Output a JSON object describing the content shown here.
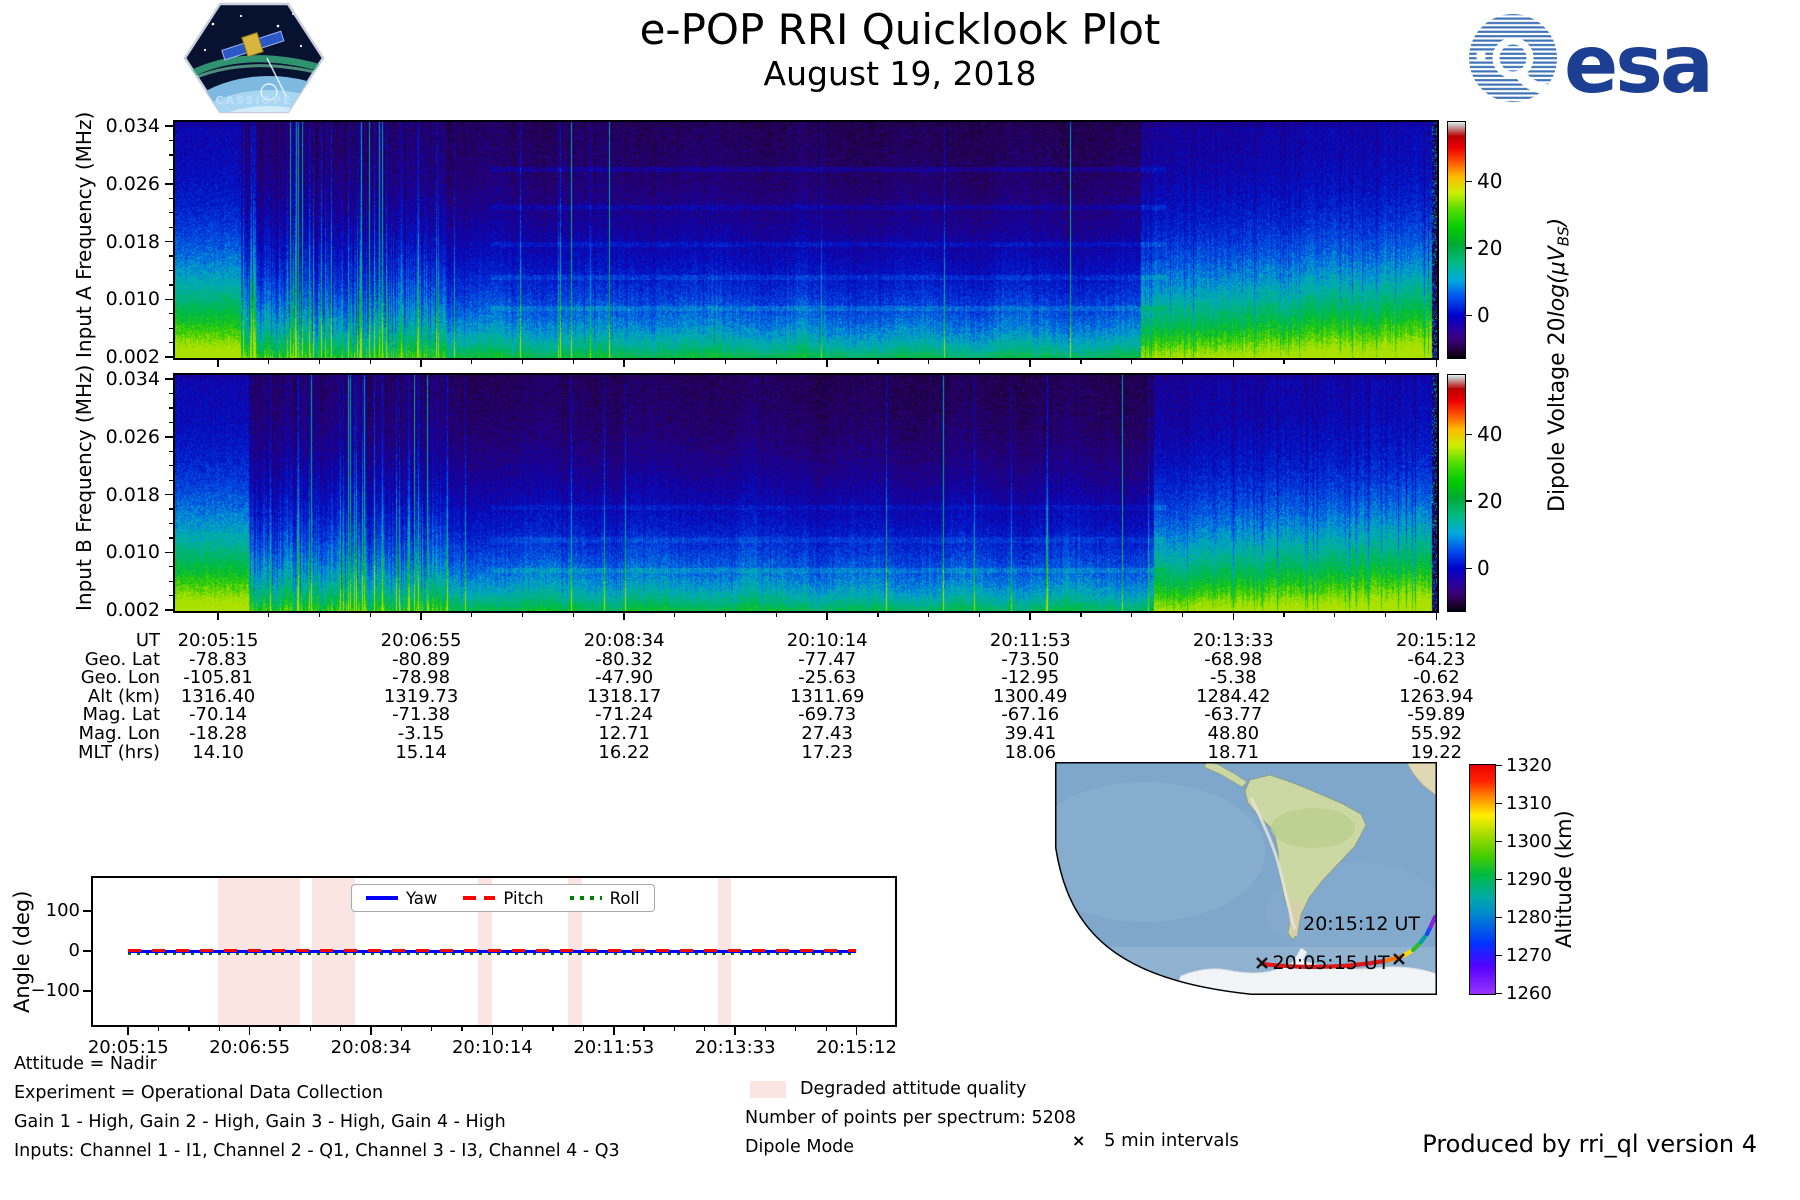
{
  "header": {
    "title": "e-POP RRI Quicklook Plot",
    "date": "August 19, 2018",
    "esa_wordmark": "esa",
    "cassiope_label": "CASSIOPE"
  },
  "palette": {
    "degraded_band": "#fbe5e2",
    "yaw": "#0000ff",
    "pitch": "#ff0000",
    "roll": "#008000",
    "ocean": "#7ea7cb",
    "land": "#ccd8a4",
    "africa_land": "#e0d7b4",
    "ice": "#f2f5f8",
    "esa_blue": "#1c3e93"
  },
  "spectrograms": {
    "panels": [
      {
        "ylabel": "Input A Frequency (MHz)"
      },
      {
        "ylabel": "Input B Frequency (MHz)"
      }
    ],
    "ytick_labels": [
      "0.034",
      "0.026",
      "0.018",
      "0.010",
      "0.002"
    ],
    "colorbar": {
      "ticks": [
        "40",
        "20",
        "0"
      ],
      "label_prefix": "Dipole Voltage 20",
      "label_italic": "log(μV",
      "label_sub": "BS",
      "label_close": ")"
    }
  },
  "ephemeris": {
    "rows": [
      {
        "label": "UT",
        "values": [
          "20:05:15",
          "20:06:55",
          "20:08:34",
          "20:10:14",
          "20:11:53",
          "20:13:33",
          "20:15:12"
        ]
      },
      {
        "label": "Geo. Lat",
        "values": [
          "-78.83",
          "-80.89",
          "-80.32",
          "-77.47",
          "-73.50",
          "-68.98",
          "-64.23"
        ]
      },
      {
        "label": "Geo. Lon",
        "values": [
          "-105.81",
          "-78.98",
          "-47.90",
          "-25.63",
          "-12.95",
          "-5.38",
          "-0.62"
        ]
      },
      {
        "label": "Alt (km)",
        "values": [
          "1316.40",
          "1319.73",
          "1318.17",
          "1311.69",
          "1300.49",
          "1284.42",
          "1263.94"
        ]
      },
      {
        "label": "Mag. Lat",
        "values": [
          "-70.14",
          "-71.38",
          "-71.24",
          "-69.73",
          "-67.16",
          "-63.77",
          "-59.89"
        ]
      },
      {
        "label": "Mag. Lon",
        "values": [
          "-18.28",
          "-3.15",
          "12.71",
          "27.43",
          "39.41",
          "48.80",
          "55.92"
        ]
      },
      {
        "label": "MLT (hrs)",
        "values": [
          "14.10",
          "15.14",
          "16.22",
          "17.23",
          "18.06",
          "18.71",
          "19.22"
        ]
      }
    ]
  },
  "attitude": {
    "ylabel": "Angle (deg)",
    "yticks": [
      "100",
      "0",
      "−100"
    ],
    "xticks": [
      "20:05:15",
      "20:06:55",
      "20:08:34",
      "20:10:14",
      "20:11:53",
      "20:13:33",
      "20:15:12"
    ],
    "legend": [
      {
        "label": "Yaw",
        "style": "solid"
      },
      {
        "label": "Pitch",
        "style": "dashed"
      },
      {
        "label": "Roll",
        "style": "dotted"
      }
    ],
    "degraded_label": "Degraded attitude quality",
    "degraded_bands_pct": [
      [
        15.6,
        25.8
      ],
      [
        27.3,
        32.7
      ],
      [
        48.0,
        49.8
      ],
      [
        59.2,
        61.0
      ],
      [
        77.9,
        79.6
      ]
    ]
  },
  "footnotes": {
    "lines": [
      "Attitude = Nadir",
      "Experiment = Operational Data Collection",
      "Gain 1 - High, Gain 2 - High, Gain 3 - High, Gain 4 - High",
      "Inputs: Channel 1 - I1, Channel 2 - Q1, Channel 3 - I3, Channel 4 - Q3"
    ]
  },
  "info": {
    "points_line": "Number of points per spectrum: 5208",
    "mode_line": "Dipole Mode"
  },
  "map": {
    "end_label": "20:15:12 UT",
    "start_label": "20:05:15 UT",
    "marker_glyph": "×",
    "interval_label": "5 min intervals",
    "colorbar_label": "Altitude (km)",
    "colorbar_ticks": [
      "1320",
      "1310",
      "1300",
      "1290",
      "1280",
      "1270",
      "1260"
    ]
  },
  "credit": "Produced by rri_ql version 4",
  "chart_data": [
    {
      "type": "heatmap",
      "name": "input_a_spectrogram",
      "ylabel": "Input A Frequency (MHz)",
      "y_ticks_mhz": [
        0.034,
        0.026,
        0.018,
        0.01,
        0.002
      ],
      "y_range_mhz": [
        0.002,
        0.034
      ],
      "x_ticks_ut": [
        "20:05:15",
        "20:06:55",
        "20:08:34",
        "20:10:14",
        "20:11:53",
        "20:13:33",
        "20:15:12"
      ],
      "colorbar": {
        "label": "Dipole Voltage 20log(μVBS)",
        "ticks": [
          0,
          20,
          40
        ]
      },
      "summary": "Broadband noise strongest (~20) below ~0.006 MHz; bright green-cyan at pass start and after ~20:13:50; dark (~0) mid-pass with dense vertical interference streaks and faint horizontal banding"
    },
    {
      "type": "heatmap",
      "name": "input_b_spectrogram",
      "ylabel": "Input B Frequency (MHz)",
      "y_ticks_mhz": [
        0.034,
        0.026,
        0.018,
        0.01,
        0.002
      ],
      "y_range_mhz": [
        0.002,
        0.034
      ],
      "x_ticks_ut": [
        "20:05:15",
        "20:06:55",
        "20:08:34",
        "20:10:14",
        "20:11:53",
        "20:13:33",
        "20:15:12"
      ],
      "colorbar": {
        "label": "Dipole Voltage 20log(μVBS)",
        "ticks": [
          0,
          20,
          40
        ]
      },
      "summary": "Same pattern as Input A with weaker horizontal banding"
    },
    {
      "type": "line",
      "name": "attitude_angles",
      "ylabel": "Angle (deg)",
      "ylim": [
        -190,
        190
      ],
      "x_ticks_ut": [
        "20:05:15",
        "20:06:55",
        "20:08:34",
        "20:10:14",
        "20:11:53",
        "20:13:33",
        "20:15:12"
      ],
      "series": [
        {
          "name": "Yaw",
          "color": "#0000ff",
          "style": "solid",
          "values": [
            0,
            0,
            0,
            0,
            0,
            0,
            0
          ]
        },
        {
          "name": "Pitch",
          "color": "#ff0000",
          "style": "dashed",
          "values": [
            0,
            0,
            0,
            0,
            0,
            0,
            0
          ]
        },
        {
          "name": "Roll",
          "color": "#008000",
          "style": "dotted",
          "values": [
            0,
            0,
            0,
            0,
            0,
            0,
            0
          ]
        }
      ],
      "degraded_intervals_pct_of_axis": [
        [
          15.6,
          25.8
        ],
        [
          27.3,
          32.7
        ],
        [
          48.0,
          49.8
        ],
        [
          59.2,
          61.0
        ],
        [
          77.9,
          79.6
        ]
      ]
    },
    {
      "type": "line",
      "name": "ground_track_map",
      "region": "South Atlantic / Antarctic sector with South America",
      "colorbar": {
        "label": "Altitude (km)",
        "ticks": [
          1260,
          1270,
          1280,
          1290,
          1300,
          1310,
          1320
        ]
      },
      "points": [
        {
          "ut": "20:05:15",
          "alt_km": 1316.4
        },
        {
          "ut": "20:10:14",
          "alt_km": 1311.69
        },
        {
          "ut": "20:15:12",
          "alt_km": 1263.94
        }
      ],
      "marker": "x every 5 min"
    }
  ]
}
